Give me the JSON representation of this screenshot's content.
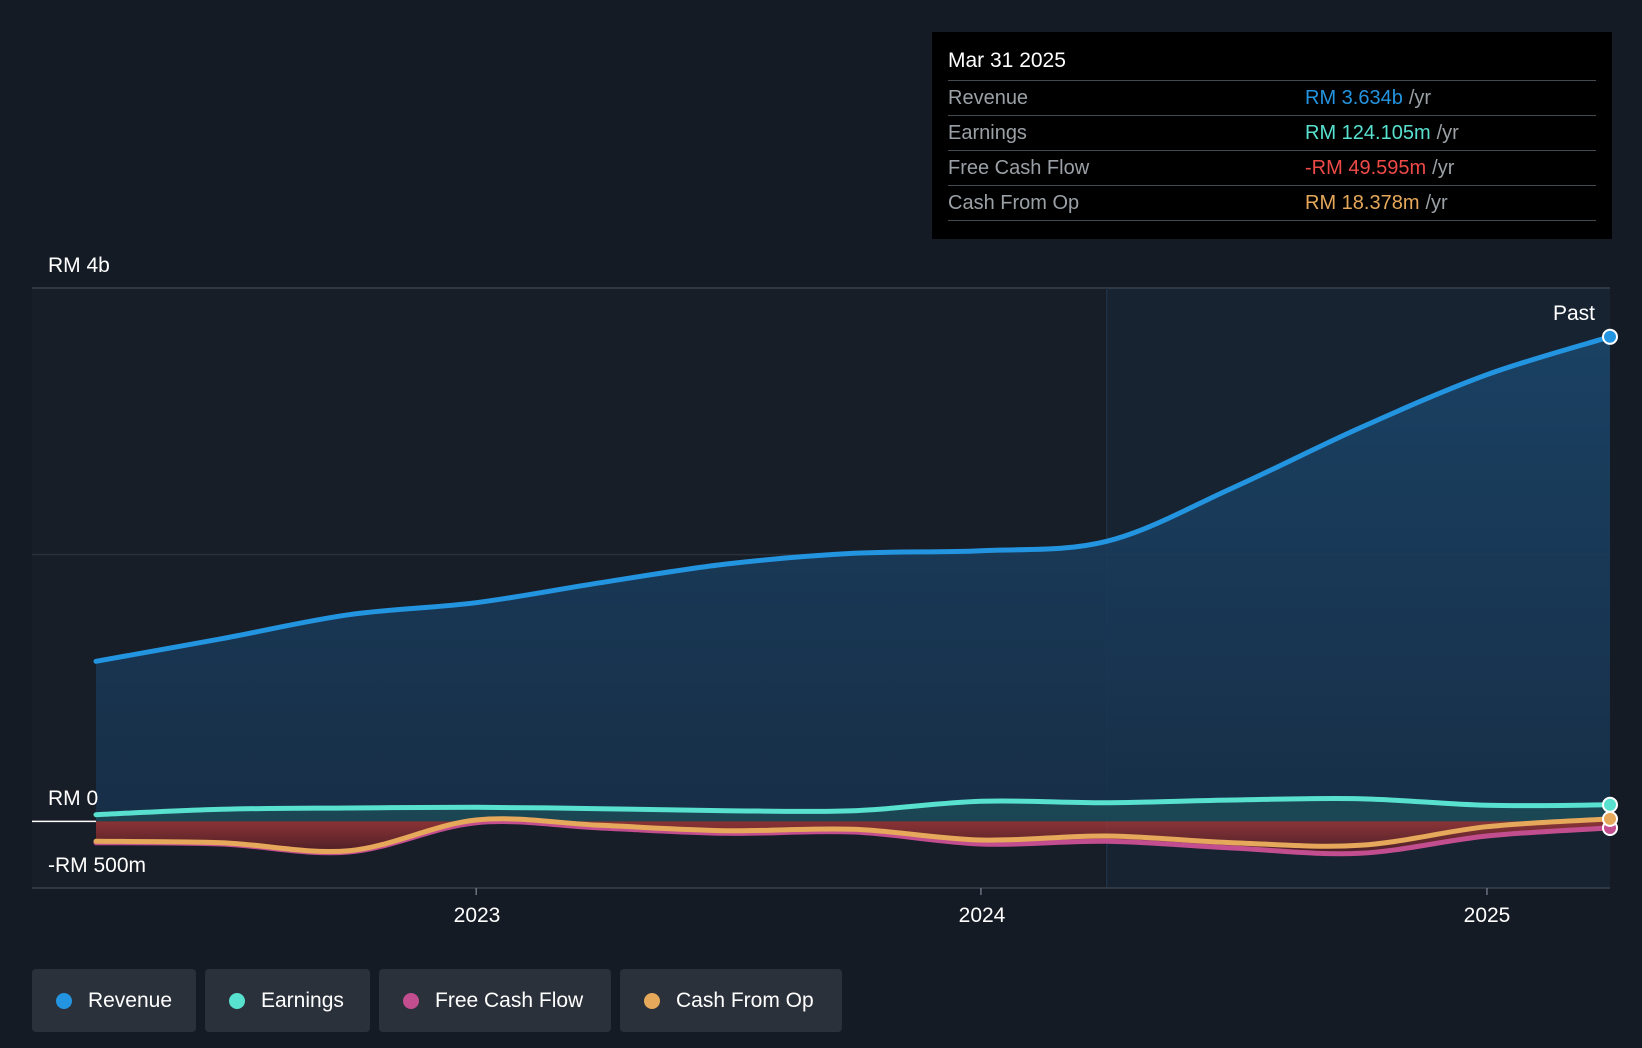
{
  "chart_data": {
    "type": "area",
    "x_range": [
      "2022-04-01",
      "2025-03-31"
    ],
    "y_range_millions": [
      -500,
      4000
    ],
    "y_tick_labels": [
      "RM 4b",
      "RM 0",
      "-RM 500m"
    ],
    "x_tick_labels": [
      "2023",
      "2024",
      "2025"
    ],
    "past_label": "Past",
    "series": [
      {
        "name": "Revenue",
        "color": "#2394df",
        "points": [
          [
            "2022-04-01",
            1200
          ],
          [
            "2022-07-01",
            1370
          ],
          [
            "2022-10-01",
            1550
          ],
          [
            "2023-01-01",
            1640
          ],
          [
            "2023-04-01",
            1790
          ],
          [
            "2023-07-01",
            1930
          ],
          [
            "2023-10-01",
            2010
          ],
          [
            "2024-01-01",
            2030
          ],
          [
            "2024-04-01",
            2100
          ],
          [
            "2024-07-01",
            2500
          ],
          [
            "2024-10-01",
            2950
          ],
          [
            "2025-01-01",
            3350
          ],
          [
            "2025-03-31",
            3634
          ]
        ]
      },
      {
        "name": "Earnings",
        "color": "#58e1cf",
        "points": [
          [
            "2022-04-01",
            50
          ],
          [
            "2022-07-01",
            90
          ],
          [
            "2022-10-01",
            100
          ],
          [
            "2023-01-01",
            105
          ],
          [
            "2023-04-01",
            95
          ],
          [
            "2023-07-01",
            80
          ],
          [
            "2023-10-01",
            80
          ],
          [
            "2024-01-01",
            150
          ],
          [
            "2024-04-01",
            140
          ],
          [
            "2024-07-01",
            160
          ],
          [
            "2024-10-01",
            170
          ],
          [
            "2025-01-01",
            120
          ],
          [
            "2025-03-31",
            124.105
          ]
        ]
      },
      {
        "name": "Free Cash Flow",
        "color": "#c24e8f",
        "points": [
          [
            "2022-04-01",
            -160
          ],
          [
            "2022-07-01",
            -170
          ],
          [
            "2022-10-01",
            -230
          ],
          [
            "2023-01-01",
            -10
          ],
          [
            "2023-04-01",
            -50
          ],
          [
            "2023-07-01",
            -90
          ],
          [
            "2023-10-01",
            -80
          ],
          [
            "2024-01-01",
            -170
          ],
          [
            "2024-04-01",
            -150
          ],
          [
            "2024-07-01",
            -200
          ],
          [
            "2024-10-01",
            -240
          ],
          [
            "2025-01-01",
            -110
          ],
          [
            "2025-03-31",
            -49.595
          ]
        ]
      },
      {
        "name": "Cash From Op",
        "color": "#e6a85b",
        "points": [
          [
            "2022-04-01",
            -150
          ],
          [
            "2022-07-01",
            -160
          ],
          [
            "2022-10-01",
            -220
          ],
          [
            "2023-01-01",
            10
          ],
          [
            "2023-04-01",
            -30
          ],
          [
            "2023-07-01",
            -70
          ],
          [
            "2023-10-01",
            -60
          ],
          [
            "2024-01-01",
            -140
          ],
          [
            "2024-04-01",
            -110
          ],
          [
            "2024-07-01",
            -160
          ],
          [
            "2024-10-01",
            -180
          ],
          [
            "2025-01-01",
            -40
          ],
          [
            "2025-03-31",
            18.378
          ]
        ]
      }
    ],
    "highlight_start": "2024-04-01",
    "grid": true
  },
  "tooltip": {
    "date": "Mar 31 2025",
    "rows": [
      {
        "label": "Revenue",
        "value": "RM 3.634b",
        "unit": "/yr",
        "color": "#2394df"
      },
      {
        "label": "Earnings",
        "value": "RM 124.105m",
        "unit": "/yr",
        "color": "#58e1cf"
      },
      {
        "label": "Free Cash Flow",
        "value": "-RM 49.595m",
        "unit": "/yr",
        "color": "#ef4a48"
      },
      {
        "label": "Cash From Op",
        "value": "RM 18.378m",
        "unit": "/yr",
        "color": "#e6a85b"
      }
    ]
  },
  "legend": [
    {
      "label": "Revenue",
      "color": "#2394df"
    },
    {
      "label": "Earnings",
      "color": "#58e1cf"
    },
    {
      "label": "Free Cash Flow",
      "color": "#c24e8f"
    },
    {
      "label": "Cash From Op",
      "color": "#e6a85b"
    }
  ]
}
